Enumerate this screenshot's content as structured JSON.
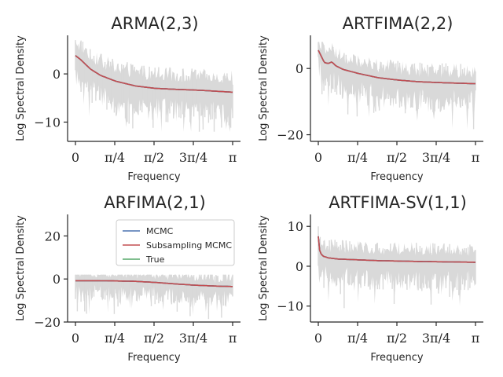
{
  "colors": {
    "mcmc": "#4c72b0",
    "subsampling": "#c44e52",
    "true": "#55a868",
    "periodogram": "#d9d9d9",
    "axis": "#262626"
  },
  "chart_data": [
    {
      "type": "line",
      "title": "ARMA(2,3)",
      "xlabel": "Frequency",
      "ylabel": "Log Spectral Density",
      "xlim": [
        0,
        3.1416
      ],
      "ylim": [
        -14,
        8
      ],
      "xticks": [
        0,
        0.7854,
        1.5708,
        2.3562,
        3.1416
      ],
      "xticklabels": [
        "0",
        "π/4",
        "π/2",
        "3π/4",
        "π"
      ],
      "yticks": [
        0,
        -10
      ],
      "yticklabels": [
        "0",
        "−10"
      ],
      "periodogram": {
        "name": "Periodogram",
        "color": "#d9d9d9",
        "low": -12,
        "high": 7,
        "spread": 5.5
      },
      "series": [
        {
          "name": "True",
          "x": [
            0,
            0.1,
            0.3,
            0.5,
            0.8,
            1.2,
            1.6,
            2.0,
            2.5,
            3.14
          ],
          "y": [
            3.8,
            3.0,
            1.0,
            -0.3,
            -1.5,
            -2.5,
            -3.0,
            -3.2,
            -3.4,
            -3.8
          ]
        },
        {
          "name": "MCMC",
          "x": [
            0,
            0.1,
            0.3,
            0.5,
            0.8,
            1.2,
            1.6,
            2.0,
            2.5,
            3.14
          ],
          "y": [
            3.8,
            3.0,
            1.0,
            -0.3,
            -1.5,
            -2.5,
            -3.0,
            -3.2,
            -3.4,
            -3.8
          ]
        },
        {
          "name": "Subsampling MCMC",
          "x": [
            0,
            0.1,
            0.3,
            0.5,
            0.8,
            1.2,
            1.6,
            2.0,
            2.5,
            3.14
          ],
          "y": [
            3.8,
            3.0,
            1.0,
            -0.3,
            -1.5,
            -2.5,
            -3.0,
            -3.2,
            -3.4,
            -3.8
          ]
        }
      ]
    },
    {
      "type": "line",
      "title": "ARTFIMA(2,2)",
      "xlabel": "Frequency",
      "ylabel": "Log Spectral Density",
      "xlim": [
        0,
        3.1416
      ],
      "ylim": [
        -22,
        10
      ],
      "xticks": [
        0,
        0.7854,
        1.5708,
        2.3562,
        3.1416
      ],
      "xticklabels": [
        "0",
        "π/4",
        "π/2",
        "3π/4",
        "π"
      ],
      "yticks": [
        0,
        -20
      ],
      "yticklabels": [
        "0",
        "−20"
      ],
      "periodogram": {
        "name": "Periodogram",
        "color": "#d9d9d9",
        "low": -20,
        "high": 8,
        "spread": 8
      },
      "series": [
        {
          "name": "True",
          "x": [
            0,
            0.05,
            0.12,
            0.2,
            0.27,
            0.35,
            0.5,
            0.8,
            1.2,
            1.6,
            2.0,
            2.5,
            3.14
          ],
          "y": [
            5.5,
            4.0,
            1.8,
            1.5,
            2.0,
            0.8,
            -0.3,
            -1.5,
            -2.8,
            -3.5,
            -4.0,
            -4.3,
            -4.6
          ]
        },
        {
          "name": "MCMC",
          "x": [
            0,
            0.05,
            0.12,
            0.2,
            0.27,
            0.35,
            0.5,
            0.8,
            1.2,
            1.6,
            2.0,
            2.5,
            3.14
          ],
          "y": [
            5.5,
            4.0,
            1.8,
            1.5,
            2.0,
            0.8,
            -0.3,
            -1.5,
            -2.8,
            -3.5,
            -4.0,
            -4.3,
            -4.6
          ]
        },
        {
          "name": "Subsampling MCMC",
          "x": [
            0,
            0.05,
            0.12,
            0.2,
            0.27,
            0.35,
            0.5,
            0.8,
            1.2,
            1.6,
            2.0,
            2.5,
            3.14
          ],
          "y": [
            5.5,
            4.0,
            1.8,
            1.5,
            2.0,
            0.8,
            -0.3,
            -1.5,
            -2.8,
            -3.5,
            -4.0,
            -4.3,
            -4.6
          ]
        }
      ]
    },
    {
      "type": "line",
      "title": "ARFIMA(2,1)",
      "xlabel": "Frequency",
      "ylabel": "Log Spectral Density",
      "xlim": [
        0,
        3.1416
      ],
      "ylim": [
        -20,
        30
      ],
      "xticks": [
        0,
        0.7854,
        1.5708,
        2.3562,
        3.1416
      ],
      "xticklabels": [
        "0",
        "π/4",
        "π/2",
        "3π/4",
        "π"
      ],
      "yticks": [
        20,
        0,
        -20
      ],
      "yticklabels": [
        "20",
        "0",
        "−20"
      ],
      "periodogram": {
        "name": "Periodogram",
        "color": "#d9d9d9",
        "low": -18,
        "high": 2,
        "spread": 9
      },
      "legend": {
        "position": "upper-center",
        "entries": [
          "MCMC",
          "Subsampling MCMC",
          "True"
        ]
      },
      "series": [
        {
          "name": "True",
          "x": [
            0,
            0.4,
            0.8,
            1.2,
            1.6,
            2.0,
            2.4,
            2.8,
            3.14
          ],
          "y": [
            -0.8,
            -0.8,
            -0.9,
            -1.1,
            -1.6,
            -2.3,
            -2.9,
            -3.3,
            -3.5
          ]
        },
        {
          "name": "MCMC",
          "x": [
            0,
            0.4,
            0.8,
            1.2,
            1.6,
            2.0,
            2.4,
            2.8,
            3.14
          ],
          "y": [
            -0.8,
            -0.8,
            -0.9,
            -1.1,
            -1.6,
            -2.3,
            -2.9,
            -3.3,
            -3.5
          ]
        },
        {
          "name": "Subsampling MCMC",
          "x": [
            0,
            0.4,
            0.8,
            1.2,
            1.6,
            2.0,
            2.4,
            2.8,
            3.14
          ],
          "y": [
            -0.8,
            -0.8,
            -0.9,
            -1.1,
            -1.6,
            -2.3,
            -2.9,
            -3.3,
            -3.5
          ]
        }
      ]
    },
    {
      "type": "line",
      "title": "ARTFIMA-SV(1,1)",
      "xlabel": "Frequency",
      "ylabel": "Log Spectral Density",
      "xlim": [
        0,
        3.1416
      ],
      "ylim": [
        -14,
        13
      ],
      "xticks": [
        0,
        0.7854,
        1.5708,
        2.3562,
        3.1416
      ],
      "xticklabels": [
        "0",
        "π/4",
        "π/2",
        "3π/4",
        "π"
      ],
      "yticks": [
        10,
        0,
        -10
      ],
      "yticklabels": [
        "10",
        "0",
        "−10"
      ],
      "periodogram": {
        "name": "Periodogram",
        "color": "#d9d9d9",
        "low": -12,
        "high": 10,
        "spread": 6
      },
      "series": [
        {
          "name": "True",
          "x": [
            0,
            0.01,
            0.03,
            0.06,
            0.1,
            0.2,
            0.4,
            0.8,
            1.2,
            1.6,
            2.0,
            2.5,
            3.14
          ],
          "y": [
            7.5,
            5.0,
            3.8,
            3.0,
            2.5,
            2.1,
            1.8,
            1.6,
            1.4,
            1.3,
            1.2,
            1.1,
            1.0
          ]
        },
        {
          "name": "MCMC",
          "x": [
            0,
            0.01,
            0.03,
            0.06,
            0.1,
            0.2,
            0.4,
            0.8,
            1.2,
            1.6,
            2.0,
            2.5,
            3.14
          ],
          "y": [
            7.5,
            5.0,
            3.8,
            3.0,
            2.5,
            2.1,
            1.8,
            1.6,
            1.4,
            1.3,
            1.2,
            1.1,
            1.0
          ]
        },
        {
          "name": "Subsampling MCMC",
          "x": [
            0,
            0.01,
            0.03,
            0.06,
            0.1,
            0.2,
            0.4,
            0.8,
            1.2,
            1.6,
            2.0,
            2.5,
            3.14
          ],
          "y": [
            7.5,
            5.0,
            3.8,
            3.0,
            2.5,
            2.1,
            1.8,
            1.6,
            1.4,
            1.3,
            1.2,
            1.1,
            1.0
          ]
        }
      ]
    }
  ]
}
